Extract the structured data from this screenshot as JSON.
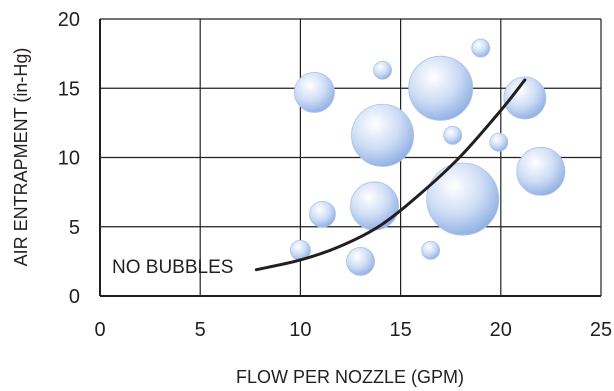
{
  "chart_data": {
    "type": "scatter",
    "title": "",
    "xlabel": "FLOW PER NOZZLE (GPM)",
    "ylabel": "AIR ENTRAPMENT (in-Hg)",
    "xlim": [
      0,
      25
    ],
    "ylim": [
      0,
      20
    ],
    "xticks": [
      "0",
      "5",
      "10",
      "15",
      "20",
      "25"
    ],
    "yticks": [
      "0",
      "5",
      "10",
      "15",
      "20"
    ],
    "grid": true,
    "bubble_color": "#b8cff0",
    "curve_color": "#231f20",
    "annotation": "NO BUBBLES",
    "bubbles": [
      {
        "x": 10.7,
        "y": 14.7,
        "r": 1.0
      },
      {
        "x": 14.1,
        "y": 11.6,
        "r": 1.55
      },
      {
        "x": 14.1,
        "y": 16.3,
        "r": 0.45
      },
      {
        "x": 17.0,
        "y": 15.0,
        "r": 1.6
      },
      {
        "x": 19.0,
        "y": 17.9,
        "r": 0.45
      },
      {
        "x": 21.2,
        "y": 14.3,
        "r": 1.05
      },
      {
        "x": 17.6,
        "y": 11.6,
        "r": 0.45
      },
      {
        "x": 19.9,
        "y": 11.1,
        "r": 0.45
      },
      {
        "x": 22.0,
        "y": 9.0,
        "r": 1.2
      },
      {
        "x": 18.1,
        "y": 7.0,
        "r": 1.8
      },
      {
        "x": 13.7,
        "y": 6.5,
        "r": 1.2
      },
      {
        "x": 11.1,
        "y": 5.9,
        "r": 0.65
      },
      {
        "x": 10.0,
        "y": 3.3,
        "r": 0.5
      },
      {
        "x": 13.0,
        "y": 2.5,
        "r": 0.7
      },
      {
        "x": 16.5,
        "y": 3.3,
        "r": 0.45
      }
    ],
    "curve": [
      {
        "x": 7.8,
        "y": 1.9
      },
      {
        "x": 10.0,
        "y": 2.6
      },
      {
        "x": 12.0,
        "y": 3.6
      },
      {
        "x": 14.0,
        "y": 5.1
      },
      {
        "x": 16.0,
        "y": 7.4
      },
      {
        "x": 18.0,
        "y": 10.1
      },
      {
        "x": 20.0,
        "y": 13.4
      },
      {
        "x": 21.2,
        "y": 15.6
      }
    ]
  }
}
